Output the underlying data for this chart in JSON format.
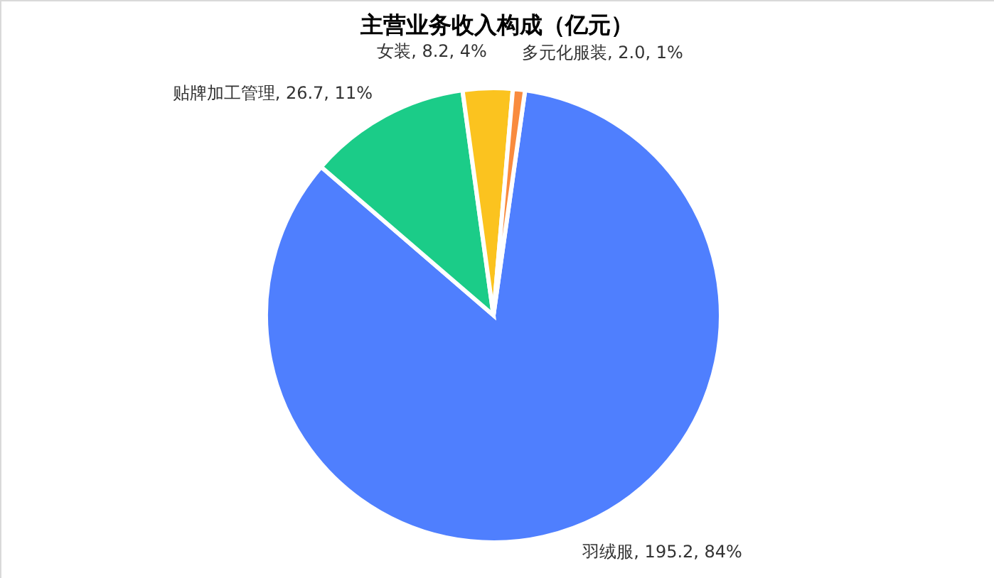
{
  "chart_data": {
    "type": "pie",
    "title": "主营业务收入构成（亿元）",
    "categories": [
      "羽绒服",
      "贴牌加工管理",
      "女装",
      "多元化服装"
    ],
    "values": [
      195.2,
      26.7,
      8.2,
      2.0
    ],
    "colors": [
      "#4f7ffe",
      "#1bcc88",
      "#fbc31f",
      "#f98b3e"
    ],
    "value_labels": [
      "195.2, 84%",
      "26.7, 11%",
      "8.2, 4%",
      "2.0, 1%"
    ]
  }
}
